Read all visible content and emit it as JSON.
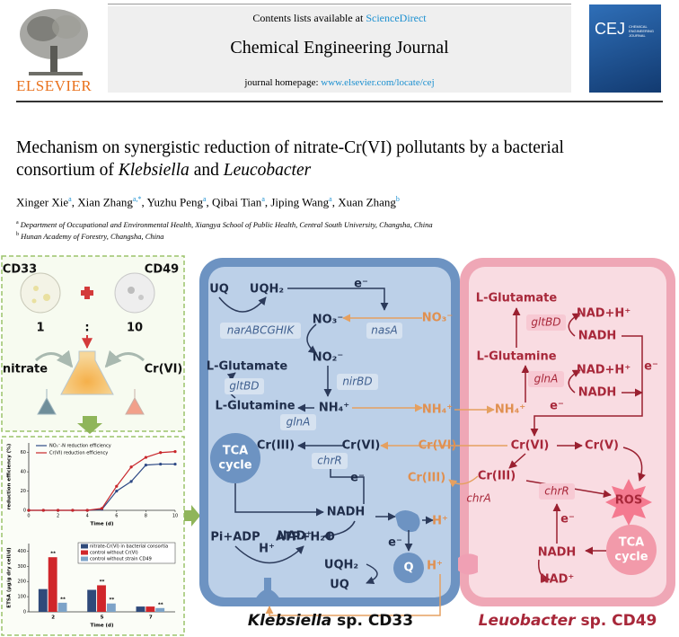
{
  "header": {
    "contents_prefix": "Contents lists available at ",
    "sciencedirect": "ScienceDirect",
    "journal": "Chemical Engineering Journal",
    "homepage_prefix": "journal homepage: ",
    "homepage_url": "www.elsevier.com/locate/cej",
    "publisher": "ELSEVIER",
    "cover_title": "CEJ",
    "cover_subtitle": "CHEMICAL ENGINEERING JOURNAL"
  },
  "article": {
    "title_parts": [
      "Mechanism on synergistic reduction of nitrate-Cr(VI) pollutants by a bacterial consortium of ",
      "Klebsiella",
      " and ",
      "Leucobacter"
    ],
    "separator": ", ",
    "authors": [
      {
        "name": "Xinger Xie",
        "aff": "a"
      },
      {
        "name": "Xian Zhang",
        "aff": "a,*"
      },
      {
        "name": "Yuzhu Peng",
        "aff": "a"
      },
      {
        "name": "Qibai Tian",
        "aff": "a"
      },
      {
        "name": "Jiping Wang",
        "aff": "a"
      },
      {
        "name": "Xuan Zhang",
        "aff": "b"
      }
    ],
    "affiliations": [
      {
        "mark": "a",
        "text": "Department of Occupational and Environmental Health, Xiangya School of Public Health, Central South University, Changsha, China"
      },
      {
        "mark": "b",
        "text": "Hunan Academy of Forestry, Changsha, China"
      }
    ]
  },
  "graphical_abstract": {
    "left": [
      "CD33",
      "CD49",
      "1",
      ":",
      "10",
      "nitrate",
      "Cr(VI)"
    ],
    "line_chart": {
      "type": "line",
      "ylabel": "reduction efficiency (%)",
      "xlabel": "Time (d)",
      "x": [
        0,
        1,
        2,
        3,
        4,
        5,
        6,
        7,
        8,
        9,
        10
      ],
      "xlim": [
        0,
        10
      ],
      "xticks": [
        0,
        2,
        4,
        6,
        8,
        10
      ],
      "ylim": [
        0,
        70
      ],
      "yticks": [
        0,
        20,
        40,
        60
      ],
      "series": [
        {
          "name": "NO₃⁻-N reduction efficiency",
          "color": "#2f4a86",
          "values": [
            0,
            0,
            0,
            0,
            0,
            1,
            20,
            30,
            47,
            48,
            48
          ]
        },
        {
          "name": "Cr(VI) reduction efficiency",
          "color": "#c8262b",
          "values": [
            0,
            0,
            0,
            0,
            0,
            2,
            25,
            45,
            55,
            60,
            61
          ]
        }
      ]
    },
    "bar_chart": {
      "type": "bar",
      "ylabel": "ETSA (μg/g dry cell/d)",
      "xlabel": "Time (d)",
      "categories": [
        "2",
        "5",
        "7"
      ],
      "ylim": [
        0,
        450
      ],
      "yticks": [
        0,
        100,
        200,
        300,
        400
      ],
      "series": [
        {
          "name": "nitrate-Cr(VI) in bacterial consortia",
          "color": "#2f4a7a",
          "values": [
            150,
            145,
            35
          ],
          "significance": [
            null,
            null,
            null
          ]
        },
        {
          "name": "control without Cr(VI)",
          "color": "#d0262b",
          "values": [
            360,
            175,
            35
          ],
          "significance": [
            "**",
            "**",
            null
          ]
        },
        {
          "name": "control without strain CD49",
          "color": "#7da3c8",
          "values": [
            60,
            55,
            25
          ],
          "significance": [
            "**",
            "**",
            "**"
          ]
        }
      ]
    },
    "klebsiella": {
      "labels": [
        "UQ",
        "UQH₂",
        "e⁻",
        "NO₃⁻",
        "narABCGHIK",
        "nasA",
        "NO₂⁻",
        "L-Glutamate",
        "nirBD",
        "gltBD",
        "L-Glutamine",
        "NH₄⁺",
        "glnA",
        "TCA",
        "cycle",
        "Cr(III)",
        "Cr(VI)",
        "chrR",
        "e⁻",
        "NADH",
        "NAD⁺",
        "e⁻",
        "Pi+ADP",
        "ATP+H₂O",
        "H⁺",
        "UQH₂",
        "Q",
        "UQ",
        "H⁺"
      ],
      "caption": [
        "Klebsiella",
        " sp. CD33"
      ]
    },
    "between": [
      "NO₃⁻",
      "NH₄⁺",
      "NH₄⁺",
      "Cr(VI)",
      "Cr(III)",
      "H⁺"
    ],
    "leucobacter": {
      "labels": [
        "L-Glutamate",
        "gltBD",
        "NAD+H⁺",
        "NADH",
        "L-Glutamine",
        "glnA",
        "NAD+H⁺",
        "NADH",
        "e⁻",
        "e⁻",
        "Cr(VI)",
        "Cr(V)",
        "Cr(III)",
        "chrA",
        "chrR",
        "ROS",
        "e⁻",
        "NADH",
        "TCA",
        "cycle",
        "NAD⁺"
      ],
      "caption": [
        "Leuobacter",
        " sp. CD49"
      ]
    }
  }
}
